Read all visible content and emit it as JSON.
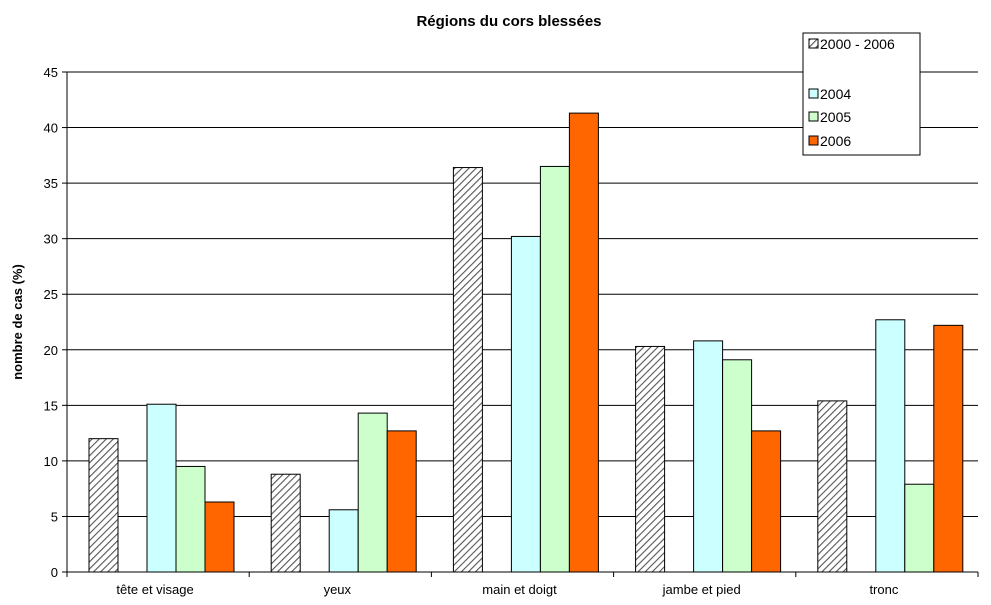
{
  "chart_data": {
    "type": "bar",
    "title": "Régions du cors blessées",
    "xlabel": "",
    "ylabel": "nombre de cas (%)",
    "ylim": [
      0,
      45
    ],
    "yticks": [
      "0",
      "5",
      "10",
      "15",
      "20",
      "25",
      "30",
      "35",
      "40",
      "45"
    ],
    "categories": [
      "tête et visage",
      "yeux",
      "main et doigt",
      "jambe et pied",
      "tronc"
    ],
    "series": [
      {
        "name": "2000 - 2006",
        "values": [
          12.0,
          8.8,
          36.4,
          20.3,
          15.4
        ]
      },
      {
        "name": "2004",
        "values": [
          15.1,
          5.6,
          30.2,
          20.8,
          22.7
        ]
      },
      {
        "name": "2005",
        "values": [
          9.5,
          14.3,
          36.5,
          19.1,
          7.9
        ]
      },
      {
        "name": "2006",
        "values": [
          6.3,
          12.7,
          41.3,
          12.7,
          22.2
        ]
      }
    ],
    "grid": true,
    "legend_position": "top-right"
  },
  "colors": {
    "2000 - 2006": "hatched-gray",
    "2004": "#ccffff",
    "2005": "#ccffcc",
    "2006": "#ff6600"
  }
}
